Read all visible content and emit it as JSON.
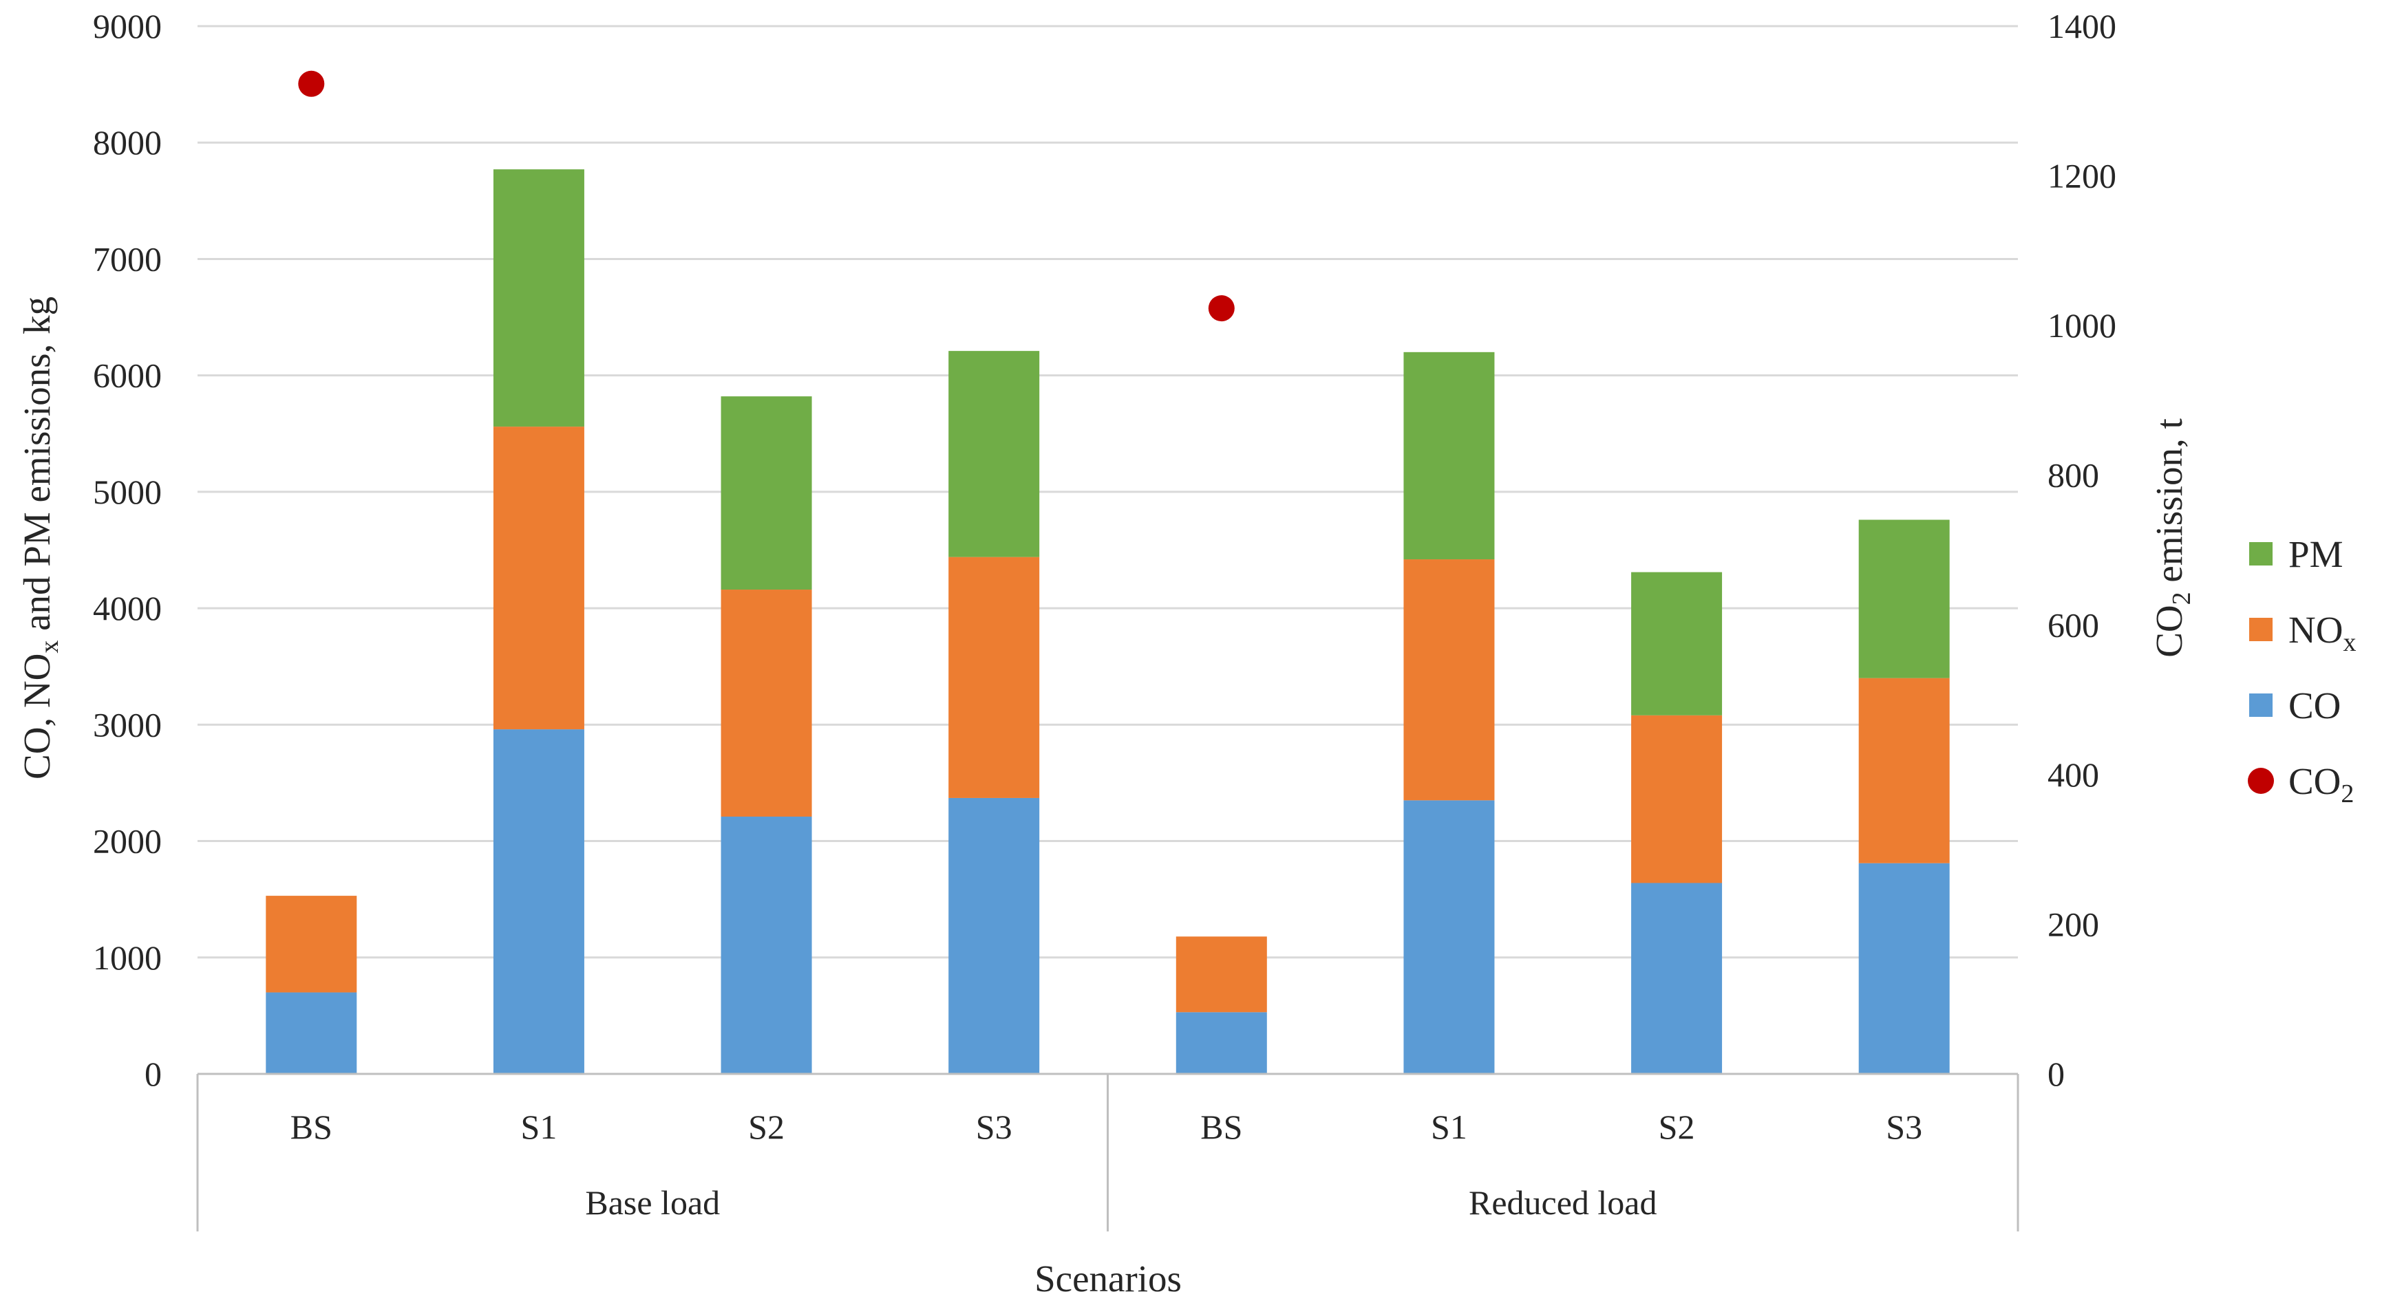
{
  "chart_data": {
    "type": "bar",
    "subtype": "stacked-bar-with-secondary-scatter",
    "title": "",
    "xlabel": "Scenarios",
    "ylabel": "CO, NO",
    "ylabel_sub": "x",
    "ylabel_tail": " and PM emissions, kg",
    "y2label": "CO",
    "y2label_sub": "2",
    "y2label_tail": " emission, t",
    "ylim": [
      0,
      9000
    ],
    "y2lim": [
      0,
      1400
    ],
    "yticks": [
      "0",
      "1000",
      "2000",
      "3000",
      "4000",
      "5000",
      "6000",
      "7000",
      "8000",
      "9000"
    ],
    "y2ticks": [
      "0",
      "200",
      "400",
      "600",
      "800",
      "1000",
      "1200",
      "1400"
    ],
    "groups": [
      {
        "label": "Base load",
        "categories": [
          "BS",
          "S1",
          "S2",
          "S3"
        ]
      },
      {
        "label": "Reduced load",
        "categories": [
          "BS",
          "S1",
          "S2",
          "S3"
        ]
      }
    ],
    "series": [
      {
        "name": "CO",
        "color": "#5b9bd5",
        "axis": "left",
        "values": [
          700,
          2960,
          2210,
          2370,
          530,
          2350,
          1640,
          1810
        ]
      },
      {
        "name": "NOx",
        "color": "#ed7d31",
        "axis": "left",
        "values": [
          830,
          2600,
          1950,
          2070,
          650,
          2070,
          1440,
          1590
        ]
      },
      {
        "name": "PM",
        "color": "#70ad47",
        "axis": "left",
        "values": [
          0,
          2210,
          1660,
          1770,
          0,
          1780,
          1230,
          1360
        ]
      }
    ],
    "scatter_series": {
      "name": "CO2",
      "color": "#c00000",
      "axis": "right",
      "values": [
        1323,
        null,
        null,
        null,
        1023,
        null,
        null,
        null
      ]
    },
    "legend": [
      {
        "label": "PM",
        "sub": "",
        "color": "#70ad47",
        "marker": "square"
      },
      {
        "label": "NO",
        "sub": "x",
        "color": "#ed7d31",
        "marker": "square"
      },
      {
        "label": "CO",
        "sub": "",
        "color": "#5b9bd5",
        "marker": "square"
      },
      {
        "label": "CO",
        "sub": "2",
        "color": "#c00000",
        "marker": "circle"
      }
    ],
    "legend_position": "right",
    "grid": true
  }
}
